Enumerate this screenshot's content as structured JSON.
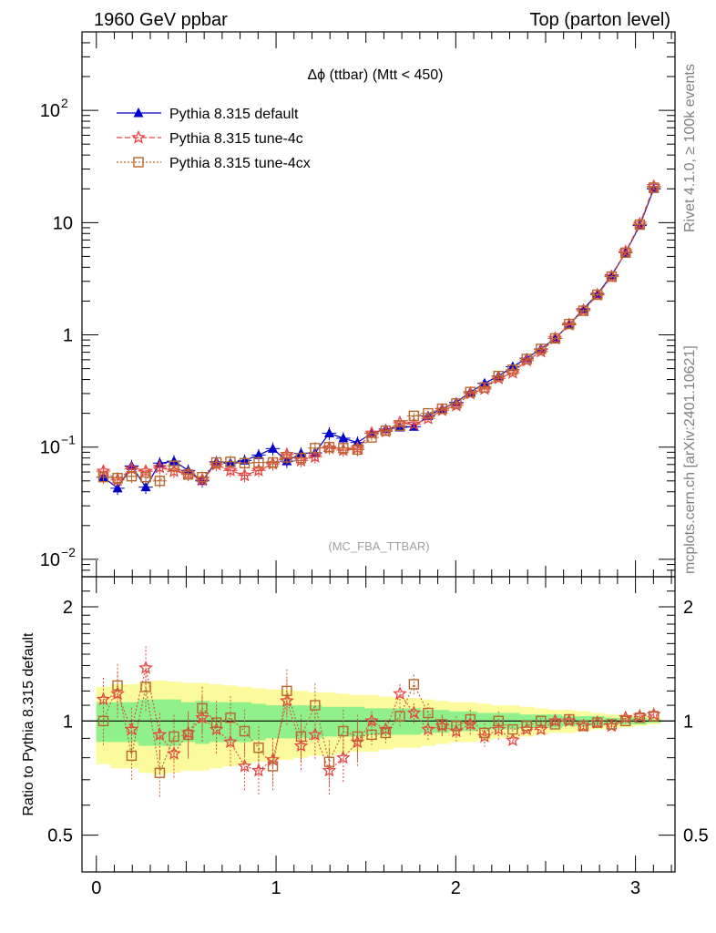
{
  "header": {
    "left": "1960 GeV ppbar",
    "right": "Top (parton level)"
  },
  "side_labels": {
    "rivet": "Rivet 4.1.0, ≥ 100k events",
    "mcplots": "mcplots.cern.ch [arXiv:2401.10621]"
  },
  "chart_data": [
    {
      "type": "line",
      "panel": "main",
      "title": "Δϕ (ttbar) (Mtt < 450)",
      "watermark": "(MC_FBA_TTBAR)",
      "xlabel": "",
      "ylabel": "",
      "yscale": "log",
      "xlim": [
        -0.08,
        3.22
      ],
      "ylim": [
        0.007,
        500
      ],
      "y_ticks": [
        {
          "value": 0.01,
          "label": "10",
          "exp": "−2"
        },
        {
          "value": 0.1,
          "label": "10",
          "exp": "−1"
        },
        {
          "value": 1,
          "label": "1",
          "exp": ""
        },
        {
          "value": 10,
          "label": "10",
          "exp": ""
        },
        {
          "value": 100,
          "label": "10",
          "exp": "2"
        }
      ],
      "legend_position": "top-left",
      "x": [
        0.039,
        0.118,
        0.196,
        0.275,
        0.353,
        0.432,
        0.511,
        0.589,
        0.668,
        0.746,
        0.825,
        0.903,
        0.982,
        1.06,
        1.139,
        1.217,
        1.296,
        1.374,
        1.453,
        1.532,
        1.61,
        1.689,
        1.767,
        1.846,
        1.924,
        2.003,
        2.081,
        2.16,
        2.238,
        2.317,
        2.395,
        2.474,
        2.553,
        2.631,
        2.71,
        2.788,
        2.867,
        2.945,
        3.024,
        3.102
      ],
      "series": [
        {
          "name": "Pythia 8.315 default",
          "color": "#0000cc",
          "values": [
            0.054,
            0.043,
            0.068,
            0.044,
            0.072,
            0.075,
            0.062,
            0.05,
            0.074,
            0.072,
            0.076,
            0.085,
            0.097,
            0.075,
            0.088,
            0.089,
            0.133,
            0.12,
            0.11,
            0.133,
            0.145,
            0.15,
            0.152,
            0.19,
            0.22,
            0.25,
            0.31,
            0.37,
            0.43,
            0.52,
            0.62,
            0.75,
            0.93,
            1.23,
            1.7,
            2.3,
            3.4,
            5.4,
            9.4,
            20.0
          ]
        },
        {
          "name": "Pythia 8.315 tune-4c",
          "color": "#e8423f",
          "values": [
            0.061,
            0.051,
            0.064,
            0.061,
            0.066,
            0.061,
            0.058,
            0.051,
            0.07,
            0.062,
            0.056,
            0.062,
            0.071,
            0.086,
            0.076,
            0.082,
            0.098,
            0.094,
            0.098,
            0.133,
            0.138,
            0.165,
            0.16,
            0.18,
            0.213,
            0.235,
            0.3,
            0.33,
            0.41,
            0.46,
            0.59,
            0.71,
            0.93,
            1.23,
            1.65,
            2.27,
            3.3,
            5.5,
            9.7,
            21.0
          ]
        },
        {
          "name": "Pythia 8.315 tune-4cx",
          "color": "#b8662e",
          "values": [
            0.054,
            0.053,
            0.055,
            0.054,
            0.05,
            0.068,
            0.057,
            0.054,
            0.073,
            0.074,
            0.072,
            0.073,
            0.073,
            0.081,
            0.08,
            0.098,
            0.1,
            0.098,
            0.095,
            0.122,
            0.14,
            0.155,
            0.19,
            0.2,
            0.22,
            0.245,
            0.31,
            0.34,
            0.43,
            0.49,
            0.61,
            0.75,
            0.93,
            1.25,
            1.64,
            2.28,
            3.3,
            5.4,
            9.6,
            20.5
          ]
        }
      ]
    },
    {
      "type": "line",
      "panel": "ratio",
      "ylabel": "Ratio to Pythia 8.315 default",
      "yscale": "log",
      "xlim": [
        -0.08,
        3.22
      ],
      "ylim": [
        0.4,
        2.4
      ],
      "x_ticks": [
        0,
        1,
        2,
        3
      ],
      "y_ticks": [
        0.5,
        1,
        2
      ],
      "x": [
        0.039,
        0.118,
        0.196,
        0.275,
        0.353,
        0.432,
        0.511,
        0.589,
        0.668,
        0.746,
        0.825,
        0.903,
        0.982,
        1.06,
        1.139,
        1.217,
        1.296,
        1.374,
        1.453,
        1.532,
        1.61,
        1.689,
        1.767,
        1.846,
        1.924,
        2.003,
        2.081,
        2.16,
        2.238,
        2.317,
        2.395,
        2.474,
        2.553,
        2.631,
        2.71,
        2.788,
        2.867,
        2.945,
        3.024,
        3.102
      ],
      "band_green": [
        0.12,
        0.12,
        0.12,
        0.14,
        0.14,
        0.14,
        0.12,
        0.13,
        0.12,
        0.12,
        0.12,
        0.11,
        0.1,
        0.1,
        0.1,
        0.1,
        0.09,
        0.09,
        0.09,
        0.08,
        0.08,
        0.08,
        0.08,
        0.07,
        0.07,
        0.06,
        0.06,
        0.05,
        0.05,
        0.05,
        0.04,
        0.04,
        0.04,
        0.03,
        0.03,
        0.03,
        0.02,
        0.02,
        0.02,
        0.01
      ],
      "band_yellow": [
        0.23,
        0.25,
        0.25,
        0.27,
        0.28,
        0.27,
        0.26,
        0.26,
        0.25,
        0.24,
        0.23,
        0.22,
        0.21,
        0.21,
        0.2,
        0.19,
        0.19,
        0.18,
        0.17,
        0.17,
        0.16,
        0.15,
        0.15,
        0.14,
        0.13,
        0.12,
        0.12,
        0.11,
        0.1,
        0.1,
        0.09,
        0.08,
        0.07,
        0.07,
        0.06,
        0.05,
        0.04,
        0.04,
        0.03,
        0.02
      ],
      "series": [
        {
          "name": "Pythia 8.315 tune-4c",
          "color": "#e8423f",
          "values": [
            1.14,
            1.18,
            0.95,
            1.38,
            0.92,
            0.82,
            0.93,
            1.02,
            0.95,
            0.88,
            0.76,
            0.74,
            0.79,
            1.13,
            0.86,
            0.92,
            0.74,
            0.8,
            0.88,
            1.0,
            0.95,
            1.18,
            1.05,
            0.95,
            0.97,
            0.94,
            0.98,
            0.91,
            0.95,
            0.89,
            0.95,
            0.95,
            1.0,
            1.0,
            0.97,
            0.99,
            0.97,
            1.02,
            1.03,
            1.04
          ]
        },
        {
          "name": "Pythia 8.315 tune-4cx",
          "color": "#b8662e",
          "values": [
            1.0,
            1.24,
            0.81,
            1.23,
            0.73,
            0.91,
            0.92,
            1.08,
            0.99,
            1.02,
            0.94,
            0.85,
            0.76,
            1.2,
            0.91,
            1.1,
            0.78,
            0.94,
            0.91,
            0.92,
            0.93,
            1.03,
            1.25,
            1.05,
            0.98,
            0.97,
            1.01,
            0.93,
            1.0,
            0.95,
            0.97,
            1.0,
            0.98,
            1.01,
            0.97,
            0.99,
            0.98,
            1.0,
            1.02,
            1.03
          ]
        }
      ]
    }
  ]
}
